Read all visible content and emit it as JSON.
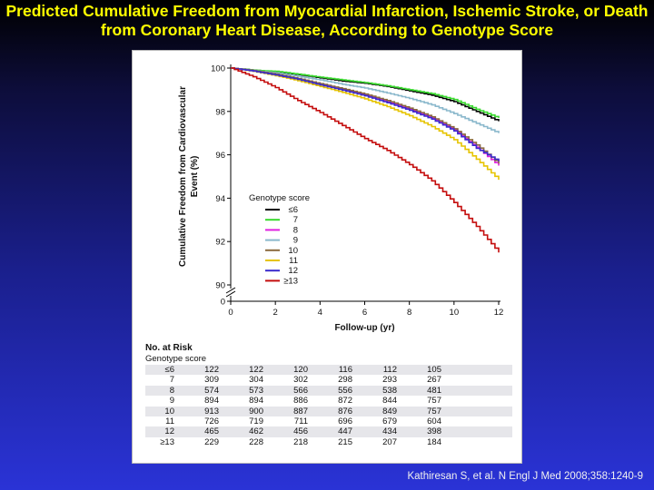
{
  "slide": {
    "title": "Predicted Cumulative Freedom from Myocardial Infarction, Ischemic Stroke, or Death from Coronary Heart Disease, According to Genotype Score",
    "citation": "Kathiresan S, et al. N Engl J Med 2008;358:1240-9",
    "title_color": "#ffff00"
  },
  "chart_data": {
    "type": "line",
    "title": "",
    "xlabel": "Follow-up (yr)",
    "ylabel": "Cumulative Freedom from Cardiovascular Event (%)",
    "xlim": [
      0,
      12
    ],
    "ylim": [
      90,
      100
    ],
    "x_ticks": [
      "0",
      "2",
      "4",
      "6",
      "8",
      "10",
      "12"
    ],
    "y_ticks": [
      "100",
      "98",
      "96",
      "94",
      "92",
      "90"
    ],
    "y_axis_break": true,
    "y_zero_label": "0",
    "grid": false,
    "legend_title": "Genotype score",
    "legend_position": "center-left",
    "x": [
      0,
      1,
      2,
      3,
      4,
      5,
      6,
      7,
      8,
      9,
      10,
      11,
      12
    ],
    "series": [
      {
        "name": "≤6",
        "color": "#000000",
        "values": [
          100,
          99.9,
          99.82,
          99.7,
          99.55,
          99.4,
          99.3,
          99.15,
          98.95,
          98.75,
          98.45,
          98.0,
          97.55
        ]
      },
      {
        "name": "7",
        "color": "#39d92e",
        "values": [
          100,
          99.9,
          99.85,
          99.72,
          99.58,
          99.45,
          99.33,
          99.18,
          99.0,
          98.82,
          98.55,
          98.1,
          97.7
        ]
      },
      {
        "name": "8",
        "color": "#e020e0",
        "values": [
          100,
          99.88,
          99.7,
          99.5,
          99.25,
          99.0,
          98.75,
          98.45,
          98.1,
          97.7,
          97.15,
          96.35,
          95.5
        ]
      },
      {
        "name": "9",
        "color": "#8ab8cc",
        "values": [
          100,
          99.88,
          99.78,
          99.62,
          99.45,
          99.25,
          99.08,
          98.85,
          98.6,
          98.3,
          97.9,
          97.45,
          97.0
        ]
      },
      {
        "name": "10",
        "color": "#8b6a3d",
        "values": [
          100,
          99.88,
          99.72,
          99.52,
          99.28,
          99.05,
          98.8,
          98.5,
          98.15,
          97.75,
          97.2,
          96.45,
          95.6
        ]
      },
      {
        "name": "11",
        "color": "#e6c400",
        "values": [
          100,
          99.85,
          99.65,
          99.42,
          99.15,
          98.88,
          98.58,
          98.22,
          97.8,
          97.3,
          96.7,
          95.8,
          94.85
        ]
      },
      {
        "name": "12",
        "color": "#3a2acc",
        "values": [
          100,
          99.86,
          99.68,
          99.48,
          99.22,
          98.98,
          98.72,
          98.4,
          98.05,
          97.65,
          97.1,
          96.3,
          95.7
        ]
      },
      {
        "name": "≥13",
        "color": "#c40d0d",
        "values": [
          100,
          99.6,
          99.1,
          98.5,
          97.95,
          97.35,
          96.75,
          96.2,
          95.55,
          94.8,
          93.8,
          92.7,
          91.5
        ]
      }
    ]
  },
  "risk_table": {
    "heading": "No. at Risk",
    "subheading": "Genotype score",
    "rows": [
      {
        "label": "≤6",
        "values": [
          "122",
          "122",
          "120",
          "116",
          "112",
          "105"
        ]
      },
      {
        "label": "7",
        "values": [
          "309",
          "304",
          "302",
          "298",
          "293",
          "267"
        ]
      },
      {
        "label": "8",
        "values": [
          "574",
          "573",
          "566",
          "556",
          "538",
          "481"
        ]
      },
      {
        "label": "9",
        "values": [
          "894",
          "894",
          "886",
          "872",
          "844",
          "757"
        ]
      },
      {
        "label": "10",
        "values": [
          "913",
          "900",
          "887",
          "876",
          "849",
          "757"
        ]
      },
      {
        "label": "11",
        "values": [
          "726",
          "719",
          "711",
          "696",
          "679",
          "604"
        ]
      },
      {
        "label": "12",
        "values": [
          "465",
          "462",
          "456",
          "447",
          "434",
          "398"
        ]
      },
      {
        "label": "≥13",
        "values": [
          "229",
          "228",
          "218",
          "215",
          "207",
          "184"
        ]
      }
    ]
  }
}
